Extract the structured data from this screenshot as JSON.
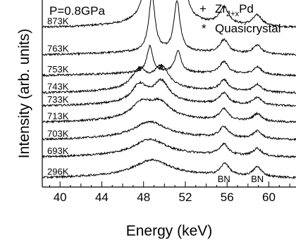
{
  "chart_data": {
    "type": "line",
    "xlabel": "Energy (keV)",
    "ylabel": "Intensity (arb. units)",
    "xlim": [
      38.3,
      62.6
    ],
    "x_ticks": [
      "40",
      "44",
      "48",
      "52",
      "56",
      "60"
    ],
    "x_tick_values": [
      40,
      44,
      48,
      52,
      56,
      60
    ],
    "y_units": "arb. units",
    "grid": false,
    "annotation_pressure": "P=0.8GPa",
    "legend": {
      "position": "top-right",
      "entries": [
        {
          "symbol": "+",
          "label": "Zr",
          "sub": "2+x",
          "suffix": "Pd"
        },
        {
          "symbol": "*",
          "label": "Quasicrystal",
          "sub": "",
          "suffix": ""
        }
      ]
    },
    "peak_labels": [
      {
        "text": "BN",
        "x": 55.7
      },
      {
        "text": "BN",
        "x": 58.9
      }
    ],
    "marker_annotations": [
      {
        "symbol": "+",
        "series": "763K",
        "x": 48.6
      },
      {
        "symbol": "+",
        "series": "763K",
        "x": 51.3
      },
      {
        "symbol": "*",
        "series": "733K",
        "x": 47.6
      },
      {
        "symbol": "*",
        "series": "733K",
        "x": 49.7
      }
    ],
    "series": [
      {
        "name": "873K",
        "baseline": 8.4,
        "bg": 0.0,
        "peaks": [
          [
            48.8,
            0.45,
            6.5
          ],
          [
            51.3,
            0.45,
            5.8
          ],
          [
            55.7,
            0.55,
            0.8
          ],
          [
            58.9,
            0.55,
            0.5
          ]
        ]
      },
      {
        "name": "763K",
        "baseline": 7.15,
        "bg": 0.0,
        "peaks": [
          [
            48.8,
            0.35,
            2.6
          ],
          [
            51.2,
            0.35,
            2.3
          ],
          [
            55.7,
            0.5,
            0.6
          ],
          [
            58.9,
            0.5,
            0.4
          ]
        ]
      },
      {
        "name": "753K",
        "baseline": 6.2,
        "bg": 0.0,
        "peaks": [
          [
            48.6,
            0.35,
            1.2
          ],
          [
            51.3,
            0.35,
            1.0
          ],
          [
            55.7,
            0.5,
            0.55
          ],
          [
            58.9,
            0.5,
            0.35
          ]
        ]
      },
      {
        "name": "743K",
        "baseline": 5.4,
        "bg": 0.0,
        "peaks": [
          [
            47.6,
            0.9,
            0.9
          ],
          [
            49.7,
            0.9,
            1.0
          ],
          [
            55.7,
            0.5,
            0.5
          ],
          [
            58.9,
            0.5,
            0.35
          ]
        ]
      },
      {
        "name": "733K",
        "baseline": 4.8,
        "bg": 0.0,
        "peaks": [
          [
            47.6,
            0.9,
            0.8
          ],
          [
            49.7,
            0.9,
            0.95
          ],
          [
            55.7,
            0.5,
            0.5
          ],
          [
            58.9,
            0.5,
            0.35
          ]
        ]
      },
      {
        "name": "713K",
        "baseline": 4.05,
        "bg": 0.0,
        "peaks": [
          [
            47.8,
            1.2,
            0.7
          ],
          [
            49.6,
            1.2,
            0.7
          ],
          [
            55.7,
            0.5,
            0.5
          ],
          [
            58.9,
            0.5,
            0.35
          ]
        ]
      },
      {
        "name": "703K",
        "baseline": 3.25,
        "bg": 0.0,
        "peaks": [
          [
            48.6,
            1.8,
            0.7
          ],
          [
            55.7,
            0.5,
            0.5
          ],
          [
            58.9,
            0.5,
            0.35
          ]
        ]
      },
      {
        "name": "693K",
        "baseline": 2.45,
        "bg": 0.0,
        "peaks": [
          [
            48.6,
            1.8,
            0.7
          ],
          [
            55.7,
            0.5,
            0.5
          ],
          [
            58.9,
            0.5,
            0.35
          ]
        ]
      },
      {
        "name": "296K",
        "baseline": 1.5,
        "bg": 0.0,
        "peaks": [
          [
            48.8,
            2.0,
            0.7
          ],
          [
            55.8,
            0.5,
            0.55
          ],
          [
            58.9,
            0.5,
            0.45
          ]
        ]
      }
    ]
  }
}
